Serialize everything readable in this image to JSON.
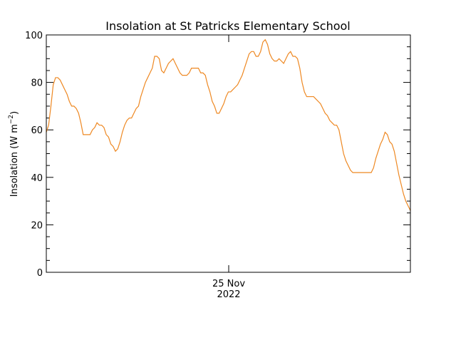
{
  "chart_data": {
    "type": "line",
    "title": "Insolation at St Patricks Elementary School",
    "ylabel_main": "Insolation (W m",
    "ylabel_sup": "−2",
    "ylabel_close": ")",
    "xlabel": "",
    "x_tick_labels": [
      "25 Nov",
      "2022"
    ],
    "ylim": [
      0,
      100
    ],
    "y_ticks": [
      0,
      20,
      40,
      60,
      80,
      100
    ],
    "grid": false,
    "line_color": "#ee8822",
    "series": [
      {
        "values": [
          59,
          62,
          70,
          79,
          82,
          82,
          81,
          79,
          77,
          75,
          72,
          70,
          70,
          69,
          67,
          63,
          58,
          58,
          58,
          58,
          60,
          61,
          63,
          62,
          62,
          61,
          58,
          57,
          54,
          53,
          51,
          52,
          55,
          59,
          62,
          64,
          65,
          65,
          67,
          69,
          70,
          74,
          77,
          80,
          82,
          84,
          86,
          91,
          91,
          90,
          85,
          84,
          86,
          88,
          89,
          90,
          88,
          86,
          84,
          83,
          83,
          83,
          84,
          86,
          86,
          86,
          86,
          84,
          84,
          83,
          79,
          76,
          72,
          70,
          67,
          67,
          69,
          71,
          74,
          76,
          76,
          77,
          78,
          79,
          81,
          83,
          86,
          89,
          92,
          93,
          93,
          91,
          91,
          93,
          97,
          98,
          96,
          92,
          90,
          89,
          89,
          90,
          89,
          88,
          90,
          92,
          93,
          91,
          91,
          90,
          86,
          80,
          76,
          74,
          74,
          74,
          74,
          73,
          72,
          71,
          69,
          67,
          66,
          64,
          63,
          62,
          62,
          60,
          55,
          50,
          47,
          45,
          43,
          42,
          42,
          42,
          42,
          42,
          42,
          42,
          42,
          42,
          44,
          48,
          51,
          54,
          56,
          59,
          58,
          55,
          54,
          51,
          46,
          41,
          37,
          33,
          30,
          28,
          26
        ]
      }
    ]
  }
}
